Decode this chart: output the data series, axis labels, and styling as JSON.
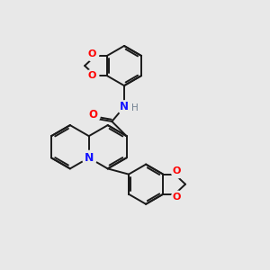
{
  "bg": "#e8e8e8",
  "bc": "#1a1a1a",
  "red": "#ff0000",
  "blue": "#1414ff",
  "gray": "#708090",
  "lw": 1.4,
  "figsize": [
    3.0,
    3.0
  ],
  "dpi": 100,
  "xlim": [
    0,
    10
  ],
  "ylim": [
    0,
    10
  ]
}
